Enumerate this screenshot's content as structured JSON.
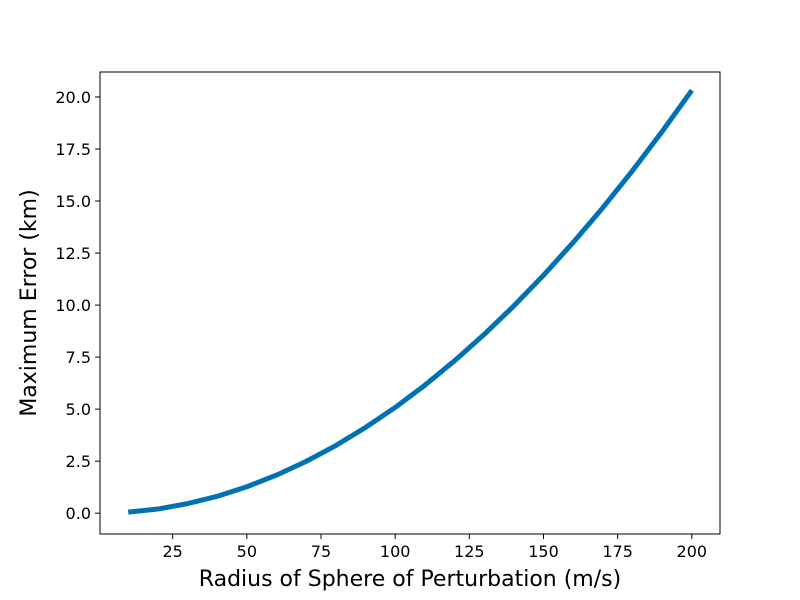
{
  "chart_data": {
    "type": "line",
    "title": "",
    "xlabel": "Radius of Sphere of Perturbation (m/s)",
    "ylabel": "Maximum Error (km)",
    "xlim": [
      0.5,
      209.5
    ],
    "ylim": [
      -1.0,
      21.2
    ],
    "x_ticks": [
      25,
      50,
      75,
      100,
      125,
      150,
      175,
      200
    ],
    "x_tick_labels": [
      "25",
      "50",
      "75",
      "100",
      "125",
      "150",
      "175",
      "200"
    ],
    "y_ticks": [
      0.0,
      2.5,
      5.0,
      7.5,
      10.0,
      12.5,
      15.0,
      17.5,
      20.0
    ],
    "y_tick_labels": [
      "0.0",
      "2.5",
      "5.0",
      "7.5",
      "10.0",
      "12.5",
      "15.0",
      "17.5",
      "20.0"
    ],
    "grid": false,
    "series": [
      {
        "color": "#0072b2",
        "x": [
          10,
          20,
          30,
          40,
          50,
          60,
          70,
          80,
          90,
          100,
          110,
          120,
          130,
          140,
          150,
          160,
          170,
          180,
          190,
          200
        ],
        "y": [
          0.05,
          0.2,
          0.46,
          0.81,
          1.27,
          1.83,
          2.49,
          3.25,
          4.12,
          5.08,
          6.15,
          7.32,
          8.59,
          9.96,
          11.43,
          13.01,
          14.68,
          16.46,
          18.34,
          20.32
        ]
      }
    ]
  }
}
